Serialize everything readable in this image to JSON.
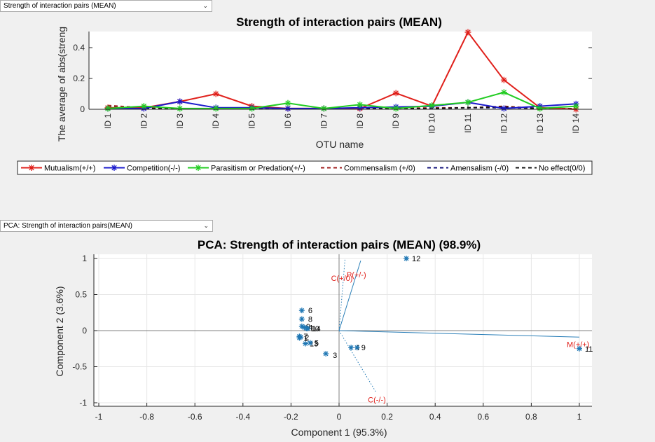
{
  "controls": {
    "dropdown1": "Strength of interaction pairs (MEAN)",
    "dropdown2": "PCA: Strength of interaction pairs(MEAN)"
  },
  "chart_data": [
    {
      "type": "line",
      "title": "Strength of interaction pairs (MEAN)",
      "xlabel": "OTU name",
      "ylabel": "The average of abs(streng",
      "categories": [
        "ID 1",
        "ID 2",
        "ID 3",
        "ID 4",
        "ID 5",
        "ID 6",
        "ID 7",
        "ID 8",
        "ID 9",
        "ID 10",
        "ID 11",
        "ID 12",
        "ID 13",
        "ID 14"
      ],
      "yticks": [
        "0",
        "0.2",
        "0.4"
      ],
      "ylim": [
        0,
        0.5
      ],
      "legend_position": "bottom",
      "series": [
        {
          "name": "Mutualism(+/+)",
          "color": "#e0201b",
          "style": "solid",
          "marker": "star",
          "values": [
            0.01,
            0.01,
            0.05,
            0.1,
            0.02,
            0.005,
            0.005,
            0.005,
            0.105,
            0.02,
            0.5,
            0.19,
            0.01,
            0.0
          ]
        },
        {
          "name": "Competition(-/-)",
          "color": "#1a1acc",
          "style": "solid",
          "marker": "star",
          "values": [
            0.005,
            0.005,
            0.05,
            0.01,
            0.01,
            0.005,
            0.005,
            0.01,
            0.015,
            0.02,
            0.045,
            0.005,
            0.02,
            0.035
          ]
        },
        {
          "name": "Parasitism or Predation(+/-)",
          "color": "#22cc22",
          "style": "solid",
          "marker": "star",
          "values": [
            0.005,
            0.02,
            0.005,
            0.005,
            0.005,
            0.04,
            0.005,
            0.03,
            0.005,
            0.025,
            0.045,
            0.11,
            0.005,
            0.02
          ]
        },
        {
          "name": "Commensalism (+/0)",
          "color": "#a01c1c",
          "style": "dashed",
          "marker": "none",
          "values": [
            0.025,
            0.01,
            0.005,
            0.005,
            0.005,
            0.005,
            0.005,
            0.005,
            0.005,
            0.01,
            0.01,
            0.02,
            0.005,
            0.005
          ]
        },
        {
          "name": "Amensalism (-/0)",
          "color": "#12127a",
          "style": "dashed",
          "marker": "none",
          "values": [
            0.01,
            0.005,
            0.005,
            0.005,
            0.005,
            0.005,
            0.005,
            0.005,
            0.005,
            0.005,
            0.01,
            0.01,
            0.005,
            0.005
          ]
        },
        {
          "name": "No effect(0/0)",
          "color": "#111111",
          "style": "dashed",
          "marker": "none",
          "values": [
            0.015,
            0.005,
            0.005,
            0.005,
            0.005,
            0.005,
            0.005,
            0.005,
            0.005,
            0.005,
            0.01,
            0.015,
            0.005,
            0.005
          ]
        }
      ]
    },
    {
      "type": "scatter",
      "title": "PCA: Strength of interaction pairs (MEAN) (98.9%)",
      "xlabel": "Component 1 (95.3%)",
      "ylabel": "Component 2 (3.6%)",
      "xlim": [
        -1.05,
        1.05
      ],
      "ylim": [
        -1.05,
        1.05
      ],
      "xticks": [
        "-1",
        "-0.8",
        "-0.6",
        "-0.4",
        "-0.2",
        "0",
        "0.2",
        "0.4",
        "0.6",
        "0.8",
        "1"
      ],
      "yticks": [
        "-1",
        "-0.5",
        "0",
        "0.5",
        "1"
      ],
      "grid": true,
      "point_color": "#1f77b4",
      "points": [
        {
          "label": "12",
          "x": 0.28,
          "y": 1.0
        },
        {
          "label": "11",
          "x": 1.0,
          "y": -0.25
        },
        {
          "label": "6",
          "x": -0.155,
          "y": 0.28
        },
        {
          "label": "8",
          "x": -0.155,
          "y": 0.16
        },
        {
          "label": "9",
          "x": -0.155,
          "y": 0.06
        },
        {
          "label": "4",
          "x": -0.145,
          "y": 0.045
        },
        {
          "label": "10",
          "x": -0.135,
          "y": 0.03
        },
        {
          "label": "14",
          "x": -0.13,
          "y": 0.03
        },
        {
          "label": "7",
          "x": -0.165,
          "y": -0.08
        },
        {
          "label": "1",
          "x": -0.165,
          "y": -0.1
        },
        {
          "label": "2",
          "x": -0.16,
          "y": -0.09
        },
        {
          "label": "13",
          "x": -0.14,
          "y": -0.18
        },
        {
          "label": "5",
          "x": -0.12,
          "y": -0.17
        },
        {
          "label": "3",
          "x": -0.055,
          "y": -0.32
        },
        {
          "label": "4",
          "x": 0.05,
          "y": -0.235
        },
        {
          "label": "9",
          "x": 0.075,
          "y": -0.235
        }
      ],
      "variables": [
        {
          "label": "M(+/+)",
          "x": 1.0,
          "y": -0.09,
          "style": "solid"
        },
        {
          "label": "P(+/-)",
          "x": 0.09,
          "y": 0.97,
          "style": "solid"
        },
        {
          "label": "C(+/0)",
          "x": 0.025,
          "y": 1.0,
          "style": "dotted"
        },
        {
          "label": "C(-/-)",
          "x": 0.155,
          "y": -0.86,
          "style": "dotted"
        }
      ],
      "arrow_color": "#2b7fb8",
      "variable_label_color": "#e0201b"
    }
  ]
}
